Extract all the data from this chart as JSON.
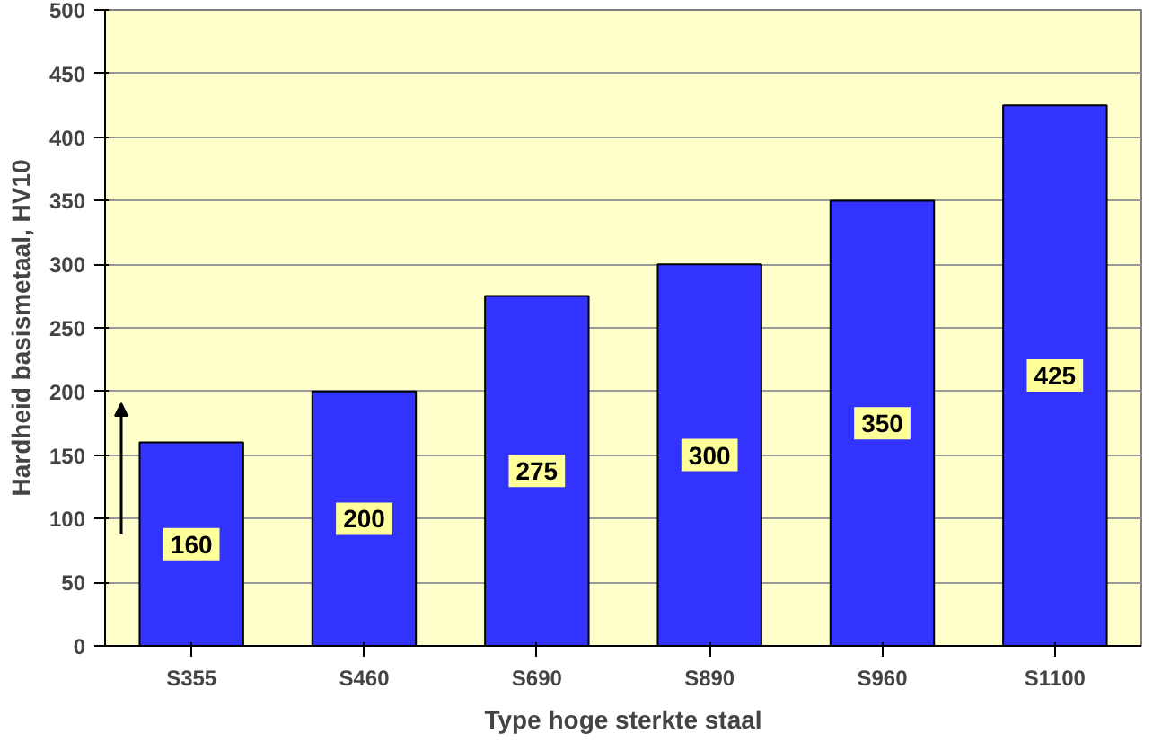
{
  "chart_data": {
    "type": "bar",
    "xlabel": "Type hoge sterkte staal",
    "ylabel": "Hardheid basismetaal, HV10",
    "categories": [
      "S355",
      "S460",
      "S690",
      "S890",
      "S960",
      "S1100"
    ],
    "values": [
      160,
      200,
      275,
      300,
      350,
      425
    ],
    "color": "#3333ff",
    "ylim": [
      0,
      500
    ],
    "yticks": [
      0,
      50,
      100,
      150,
      200,
      250,
      300,
      350,
      400,
      450,
      500
    ],
    "grid": "y",
    "data_labels": true
  }
}
